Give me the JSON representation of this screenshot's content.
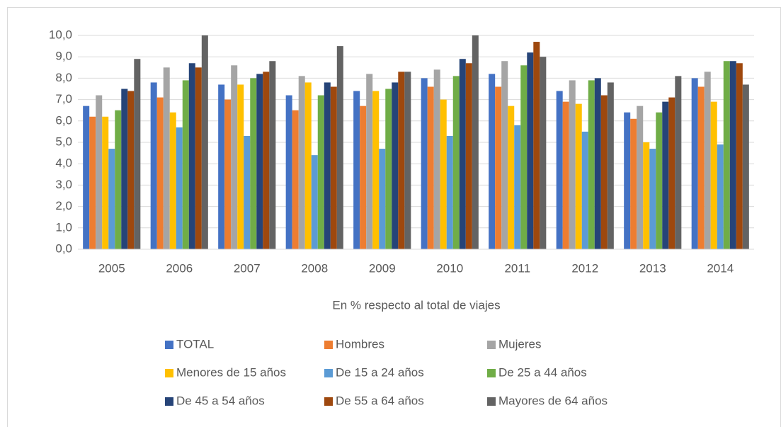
{
  "chart_data": {
    "type": "bar",
    "xlabel": "En % respecto al total de viajes",
    "categories": [
      "2005",
      "2006",
      "2007",
      "2008",
      "2009",
      "2010",
      "2011",
      "2012",
      "2013",
      "2014"
    ],
    "series": [
      {
        "name": "TOTAL",
        "color": "#4472c4",
        "values": [
          6.7,
          7.8,
          7.7,
          7.2,
          7.4,
          8.0,
          8.2,
          7.4,
          6.4,
          8.0
        ]
      },
      {
        "name": "Hombres",
        "color": "#ed7d31",
        "values": [
          6.2,
          7.1,
          7.0,
          6.5,
          6.7,
          7.6,
          7.6,
          6.9,
          6.1,
          7.6
        ]
      },
      {
        "name": "Mujeres",
        "color": "#a5a5a5",
        "values": [
          7.2,
          8.5,
          8.6,
          8.1,
          8.2,
          8.4,
          8.8,
          7.9,
          6.7,
          8.3
        ]
      },
      {
        "name": "Menores de 15 años",
        "color": "#ffc000",
        "values": [
          6.2,
          6.4,
          7.7,
          7.8,
          7.4,
          7.0,
          6.7,
          6.8,
          5.0,
          6.9
        ]
      },
      {
        "name": "De 15 a 24 años",
        "color": "#5b9bd5",
        "values": [
          4.7,
          5.7,
          5.3,
          4.4,
          4.7,
          5.3,
          5.8,
          5.5,
          4.7,
          4.9
        ]
      },
      {
        "name": "De 25 a 44 años",
        "color": "#70ad47",
        "values": [
          6.5,
          7.9,
          8.0,
          7.2,
          7.5,
          8.1,
          8.6,
          7.9,
          6.4,
          8.8
        ]
      },
      {
        "name": "De 45 a 54 años",
        "color": "#264478",
        "values": [
          7.5,
          8.7,
          8.2,
          7.8,
          7.8,
          8.9,
          9.2,
          8.0,
          6.9,
          8.8
        ]
      },
      {
        "name": "De 55 a 64 años",
        "color": "#9e480e",
        "values": [
          7.4,
          8.5,
          8.3,
          7.6,
          8.3,
          8.7,
          9.7,
          7.2,
          7.1,
          8.7
        ]
      },
      {
        "name": "Mayores de 64 años",
        "color": "#636363",
        "values": [
          8.9,
          10.0,
          8.8,
          9.5,
          8.3,
          10.0,
          9.0,
          7.8,
          8.1,
          7.7
        ]
      }
    ],
    "ylim": [
      0,
      10
    ],
    "yticks": [
      {
        "value": 0,
        "label": "0,0"
      },
      {
        "value": 1,
        "label": "1,0"
      },
      {
        "value": 2,
        "label": "2,0"
      },
      {
        "value": 3,
        "label": "3,0"
      },
      {
        "value": 4,
        "label": "4,0"
      },
      {
        "value": 5,
        "label": "5,0"
      },
      {
        "value": 6,
        "label": "6,0"
      },
      {
        "value": 7,
        "label": "7,0"
      },
      {
        "value": 8,
        "label": "8,0"
      },
      {
        "value": 9,
        "label": "9,0"
      },
      {
        "value": 10,
        "label": "10,0"
      }
    ],
    "grid": true,
    "legend": "bottom"
  }
}
